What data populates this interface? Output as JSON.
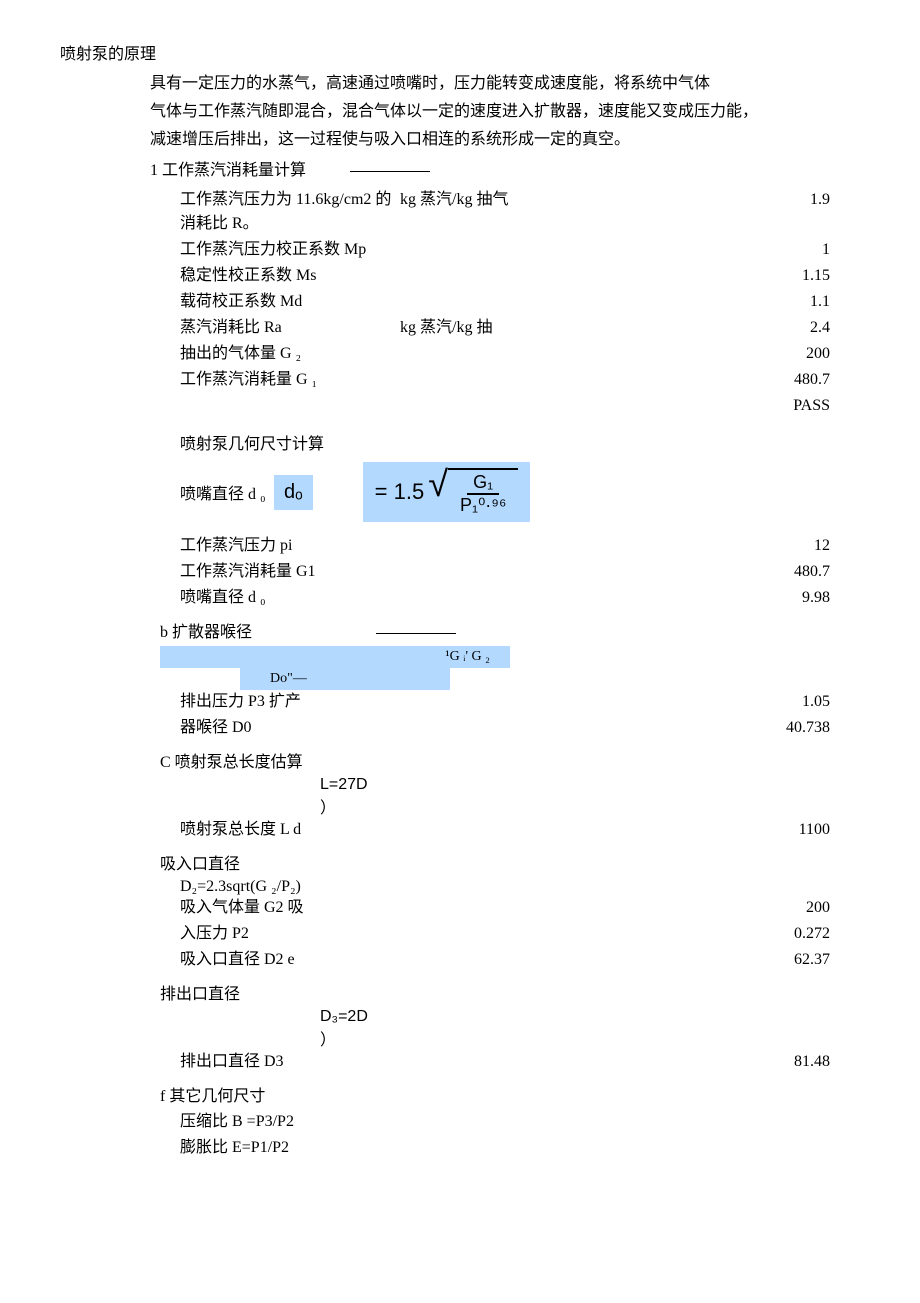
{
  "title": "喷射泵的原理",
  "intro_lines": [
    "具有一定压力的水蒸气，高速通过喷嘴时，压力能转变成速度能，将系统中气体",
    "气体与工作蒸汽随即混合，混合气体以一定的速度进入扩散器，速度能又变成压力能，",
    "减速增压后排出，这一过程使与吸入口相连的系统形成一定的真空。"
  ],
  "section1": {
    "header": "1 工作蒸汽消耗量计算",
    "rows": [
      {
        "label": "工作蒸汽压力为 11.6kg/cm2 的  消耗比 R。",
        "unit": "kg 蒸汽/kg 抽气",
        "value": "1.9"
      },
      {
        "label": "工作蒸汽压力校正系数 Mp",
        "unit": "",
        "value": "1"
      },
      {
        "label": "稳定性校正系数 Ms",
        "unit": "",
        "value": "1.15"
      },
      {
        "label": "载荷校正系数 Md",
        "unit": "",
        "value": "1.1"
      },
      {
        "label": "蒸汽消耗比 Ra",
        "unit": "kg 蒸汽/kg 抽",
        "value": "2.4"
      },
      {
        "label": "抽出的气体量 G ₂",
        "unit": "",
        "value": "200"
      },
      {
        "label": "工作蒸汽消耗量 G ₁",
        "unit": "",
        "value": "480.7"
      },
      {
        "label": "",
        "unit": "",
        "value": "PASS"
      }
    ]
  },
  "geom_header": "喷射泵几何尺寸计算",
  "nozzle": {
    "label": "喷嘴直径 d ₀",
    "do_symbol": "dₒ",
    "eq_prefix": "= 1.5",
    "frac_top": "G₁",
    "frac_bot": "P₁⁰·⁹⁶",
    "rows": [
      {
        "label": "工作蒸汽压力 pi",
        "value": "12"
      },
      {
        "label": "工作蒸汽消耗量 G1",
        "value": "480.7"
      },
      {
        "label": "喷嘴直径 d ₀",
        "value": "9.98"
      }
    ]
  },
  "diffuser": {
    "header": "b 扩散器喉径",
    "bar1_text": "¹G ᵢ' G ₂",
    "bar2_text": "Do\"—",
    "rows": [
      {
        "label": "排出压力 P3 扩产",
        "value": "1.05"
      },
      {
        "label": "器喉径 D0",
        "value": "40.738"
      }
    ]
  },
  "length": {
    "header": "C 喷射泵总长度估算",
    "formula": "L=27D",
    "formula2": "）",
    "rows": [
      {
        "label": "喷射泵总长度 L d",
        "value": "1100"
      }
    ]
  },
  "inlet": {
    "header": "吸入口直径",
    "formula": "D₂=2.3sqrt(G ₂/P₂)",
    "rows": [
      {
        "label": "吸入气体量 G2 吸",
        "value": "200"
      },
      {
        "label": "入压力 P2",
        "value": "0.272"
      },
      {
        "label": "吸入口直径 D2 e",
        "value": "62.37"
      }
    ]
  },
  "outlet": {
    "header": "排出口直径",
    "formula": "D₃=2D",
    "formula2": "）",
    "rows": [
      {
        "label": "排出口直径 D3",
        "value": "81.48"
      }
    ]
  },
  "other": {
    "header": "f 其它几何尺寸",
    "rows": [
      {
        "label": "压缩比 B =P3/P2",
        "value": ""
      },
      {
        "label": "膨胀比 E=P1/P2",
        "value": ""
      }
    ]
  }
}
